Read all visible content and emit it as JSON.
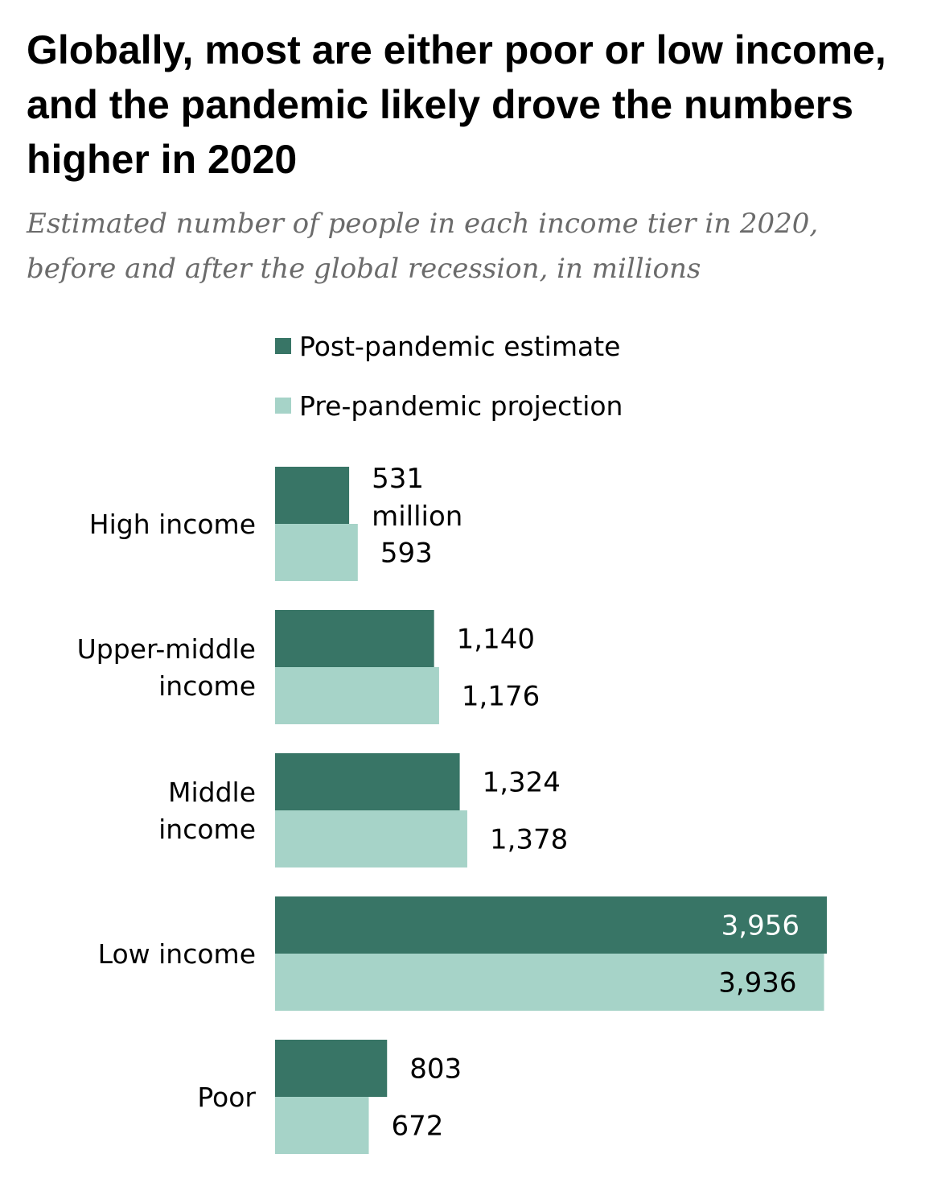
{
  "title": "Globally, most are either poor or low income, and the pandemic likely drove the numbers higher in 2020",
  "subtitle": "Estimated number of people in each income tier in 2020, before and after the global recession, in millions",
  "colors": {
    "post": "#387566",
    "pre": "#a6d3c8"
  },
  "legend": [
    {
      "name": "Post-pandemic estimate",
      "color": "#387566"
    },
    {
      "name": "Pre-pandemic projection",
      "color": "#a6d3c8"
    }
  ],
  "chart_data": {
    "type": "bar",
    "orientation": "horizontal",
    "categories": [
      "High income",
      "Upper-middle income",
      "Middle income",
      "Low income",
      "Poor"
    ],
    "category_lines": [
      [
        "High income"
      ],
      [
        "Upper-middle",
        "income"
      ],
      [
        "Middle",
        "income"
      ],
      [
        "Low income"
      ],
      [
        "Poor"
      ]
    ],
    "series": [
      {
        "name": "Post-pandemic estimate",
        "values": [
          531,
          1140,
          1324,
          3956,
          803
        ]
      },
      {
        "name": "Pre-pandemic projection",
        "values": [
          593,
          1176,
          1378,
          3936,
          672
        ]
      }
    ],
    "value_labels": [
      [
        "531",
        "1,140",
        "1,324",
        "3,956",
        "803"
      ],
      [
        "593",
        "1,176",
        "1,378",
        "3,936",
        "672"
      ]
    ],
    "unit_label": "million",
    "xlim": [
      0,
      3956
    ],
    "grid": false,
    "legend_position": "top"
  }
}
